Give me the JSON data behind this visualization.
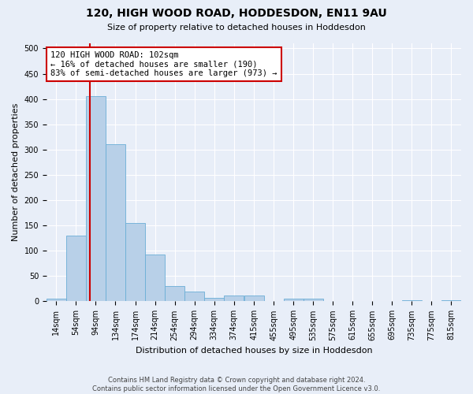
{
  "title": "120, HIGH WOOD ROAD, HODDESDON, EN11 9AU",
  "subtitle": "Size of property relative to detached houses in Hoddesdon",
  "xlabel": "Distribution of detached houses by size in Hoddesdon",
  "ylabel": "Number of detached properties",
  "footer_line1": "Contains HM Land Registry data © Crown copyright and database right 2024.",
  "footer_line2": "Contains public sector information licensed under the Open Government Licence v3.0.",
  "bin_edges": [
    14,
    54,
    94,
    134,
    174,
    214,
    254,
    294,
    334,
    374,
    415,
    455,
    495,
    535,
    575,
    615,
    655,
    695,
    735,
    775,
    815
  ],
  "bar_heights": [
    5,
    130,
    405,
    310,
    155,
    93,
    30,
    20,
    7,
    12,
    12,
    0,
    5,
    5,
    0,
    0,
    0,
    0,
    3,
    0,
    2
  ],
  "bar_color": "#b8d0e8",
  "bar_edge_color": "#6aaed6",
  "property_sqm": 102,
  "red_line_color": "#cc0000",
  "annotation_text": "120 HIGH WOOD ROAD: 102sqm\n← 16% of detached houses are smaller (190)\n83% of semi-detached houses are larger (973) →",
  "annotation_box_color": "#ffffff",
  "annotation_box_edge": "#cc0000",
  "ylim": [
    0,
    510
  ],
  "yticks": [
    0,
    50,
    100,
    150,
    200,
    250,
    300,
    350,
    400,
    450,
    500
  ],
  "background_color": "#e8eef8",
  "axes_background": "#e8eef8",
  "grid_color": "#ffffff",
  "tick_label_fontsize": 7,
  "ylabel_fontsize": 8,
  "xlabel_fontsize": 8,
  "title_fontsize": 10,
  "subtitle_fontsize": 8,
  "footer_fontsize": 6
}
